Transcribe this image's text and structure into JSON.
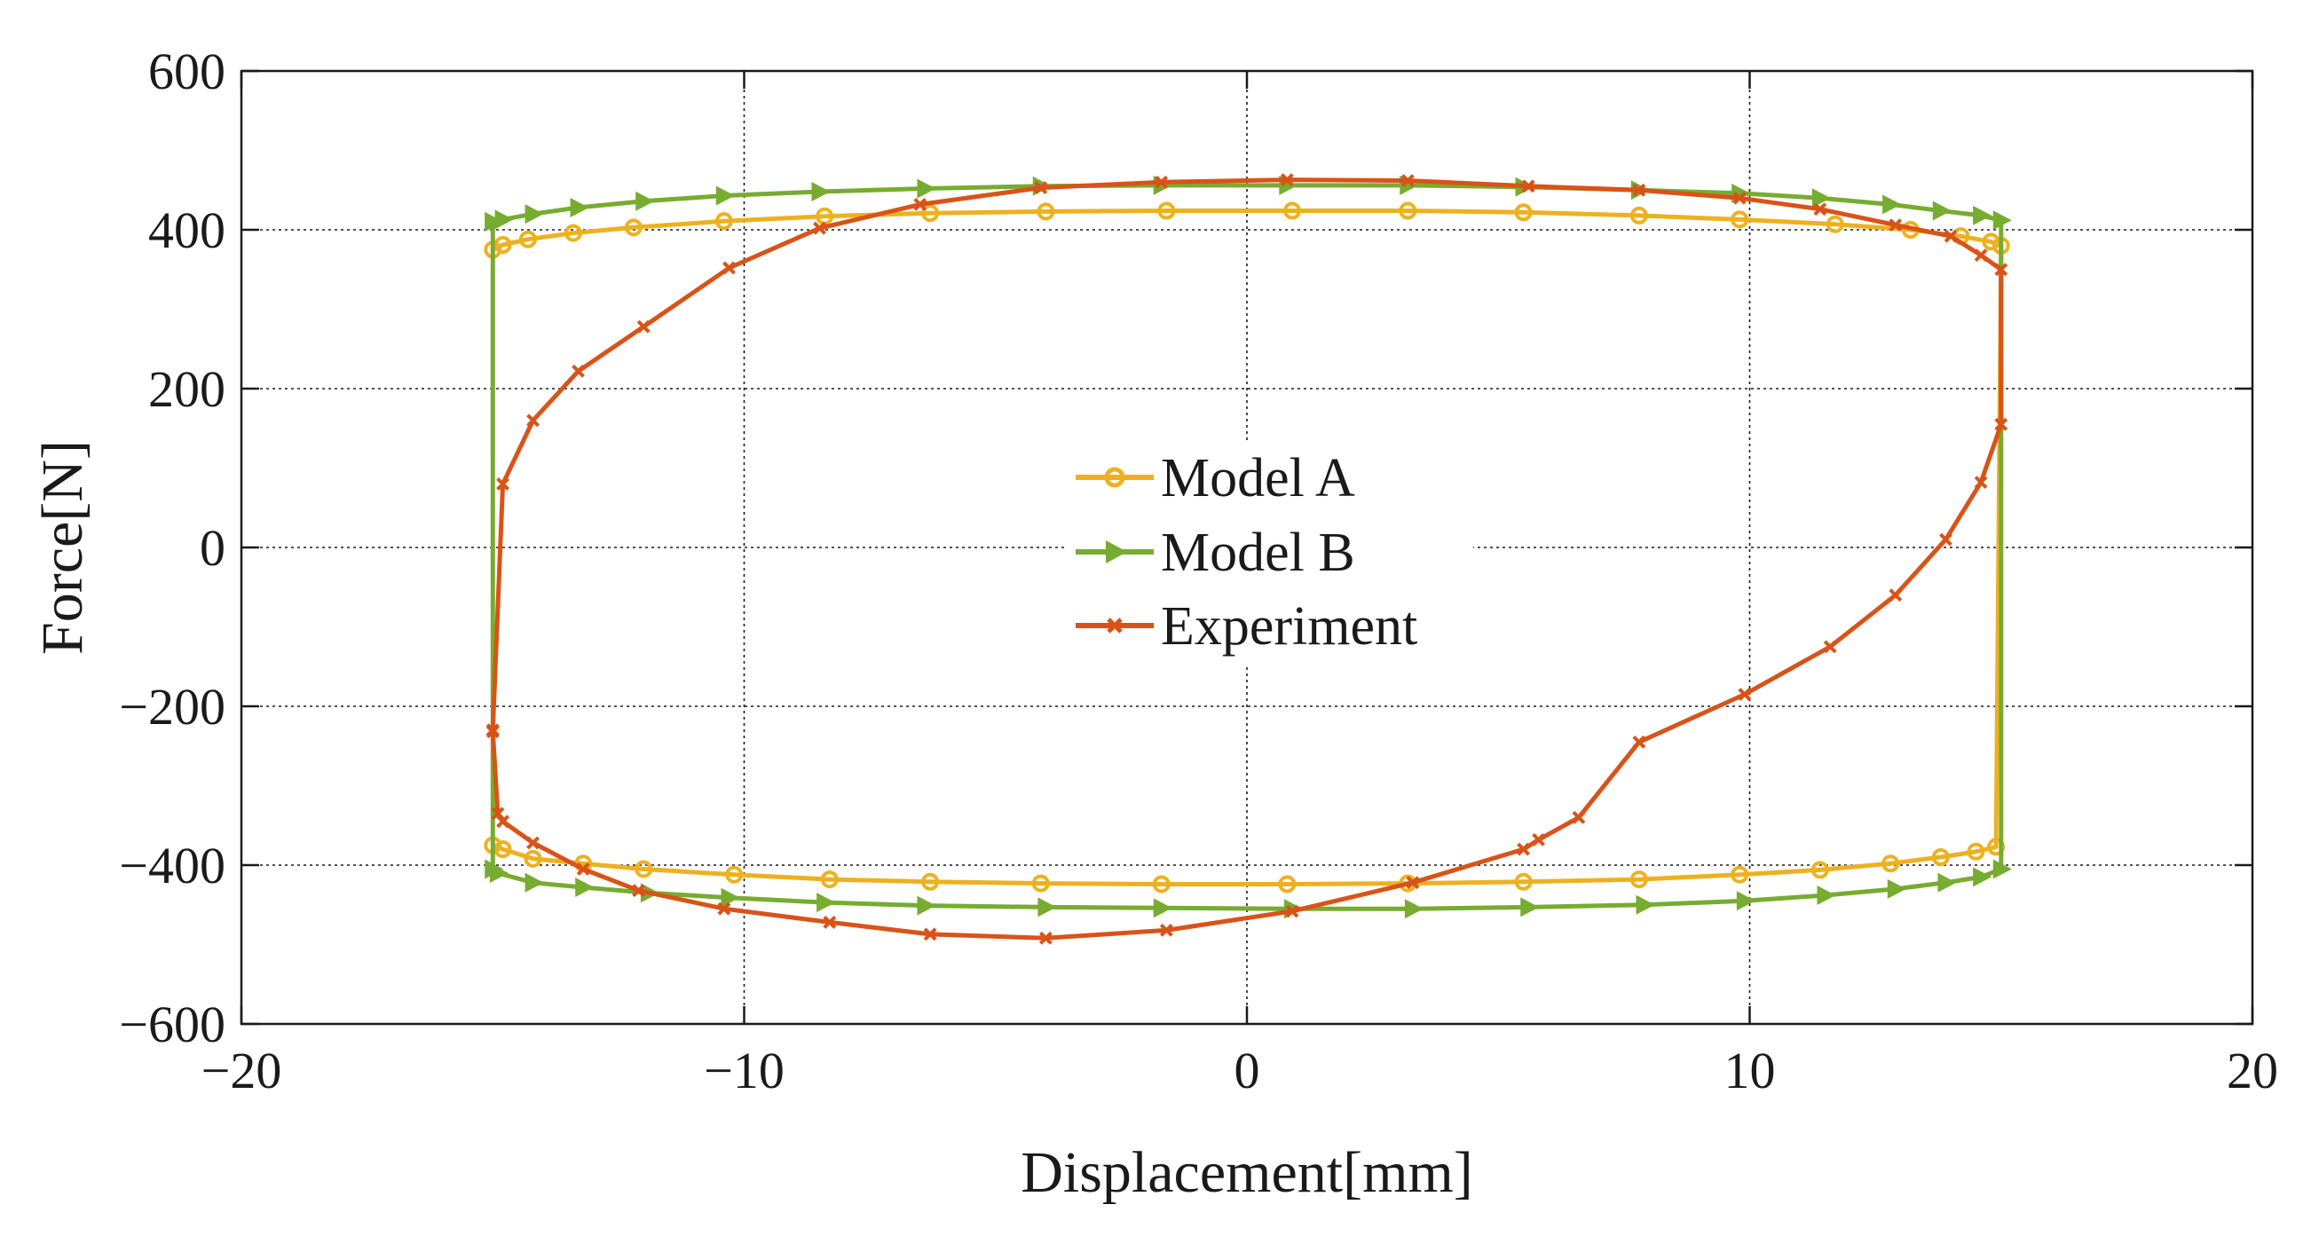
{
  "chart_data": {
    "type": "line",
    "title": "",
    "xlabel": "Displacement[mm]",
    "ylabel": "Force[N]",
    "xlim": [
      -20,
      20
    ],
    "ylim": [
      -600,
      600
    ],
    "xticks": [
      -20,
      -10,
      0,
      10,
      20
    ],
    "yticks": [
      -600,
      -400,
      -200,
      0,
      200,
      400,
      600
    ],
    "xtick_labels": [
      "−20",
      "−10",
      "0",
      "10",
      "20"
    ],
    "ytick_labels": [
      "−600",
      "−400",
      "−200",
      "0",
      "200",
      "400",
      "600"
    ],
    "grid": true,
    "legend_position": "center",
    "series": [
      {
        "name": "Model A",
        "color": "#EDB120",
        "marker": "circle",
        "x": [
          -15.0,
          -14.8,
          -14.2,
          -13.2,
          -12.0,
          -10.2,
          -8.3,
          -6.3,
          -4.1,
          -1.7,
          0.8,
          3.2,
          5.5,
          7.8,
          9.8,
          11.4,
          12.8,
          13.8,
          14.5,
          14.9,
          15.0,
          14.8,
          14.2,
          13.2,
          11.7,
          9.8,
          7.8,
          5.5,
          3.2,
          0.9,
          -1.6,
          -4.0,
          -6.3,
          -8.4,
          -10.4,
          -12.2,
          -13.4,
          -14.3,
          -14.8,
          -15.0
        ],
        "y": [
          -375,
          -380,
          -392,
          -398,
          -405,
          -412,
          -418,
          -421,
          -423,
          -424,
          -424,
          -423,
          -421,
          -418,
          -412,
          -406,
          -398,
          -390,
          -383,
          -377,
          380,
          385,
          392,
          400,
          407,
          413,
          418,
          422,
          424,
          424,
          424,
          423,
          421,
          417,
          411,
          403,
          396,
          388,
          381,
          375
        ]
      },
      {
        "name": "Model B",
        "color": "#77AC30",
        "marker": "triangle-right",
        "x": [
          -15.0,
          -15.0,
          -14.9,
          -14.2,
          -13.2,
          -11.9,
          -10.3,
          -8.4,
          -6.4,
          -4.0,
          -1.7,
          0.9,
          3.3,
          5.6,
          7.9,
          9.9,
          11.5,
          12.9,
          13.9,
          14.6,
          15.0,
          15.0,
          14.6,
          13.8,
          12.8,
          11.4,
          9.8,
          7.8,
          5.5,
          3.2,
          0.8,
          -1.7,
          -4.1,
          -6.4,
          -8.5,
          -10.4,
          -12.0,
          -13.3,
          -14.2,
          -14.8,
          -15.0
        ],
        "y": [
          410,
          -405,
          -410,
          -422,
          -428,
          -435,
          -441,
          -447,
          -451,
          -453,
          -454,
          -455,
          -455,
          -453,
          -450,
          -445,
          -438,
          -430,
          -422,
          -415,
          -405,
          412,
          418,
          424,
          432,
          440,
          446,
          450,
          454,
          456,
          456,
          456,
          455,
          452,
          448,
          443,
          436,
          428,
          420,
          413,
          410
        ]
      },
      {
        "name": "Experiment",
        "color": "#D95319",
        "marker": "x",
        "x": [
          -15.0,
          -15.0,
          -14.9,
          -14.8,
          -14.2,
          -13.2,
          -12.1,
          -10.4,
          -8.3,
          -6.3,
          -4.0,
          -1.6,
          0.9,
          3.3,
          5.5,
          5.8,
          6.6,
          7.8,
          9.9,
          11.6,
          12.9,
          13.9,
          14.6,
          15.0,
          15.0,
          14.6,
          14.0,
          12.9,
          11.4,
          9.8,
          7.8,
          5.6,
          3.2,
          0.8,
          -1.7,
          -4.1,
          -6.5,
          -8.5,
          -10.3,
          -12.0,
          -13.3,
          -14.2,
          -14.8,
          -15.0
        ],
        "y": [
          -230,
          -232,
          -335,
          -345,
          -372,
          -405,
          -432,
          -455,
          -472,
          -487,
          -492,
          -482,
          -458,
          -422,
          -380,
          -368,
          -340,
          -245,
          -185,
          -125,
          -60,
          10,
          82,
          155,
          350,
          368,
          392,
          406,
          426,
          440,
          450,
          455,
          462,
          463,
          460,
          453,
          432,
          402,
          352,
          278,
          222,
          160,
          80,
          -230
        ]
      }
    ]
  }
}
